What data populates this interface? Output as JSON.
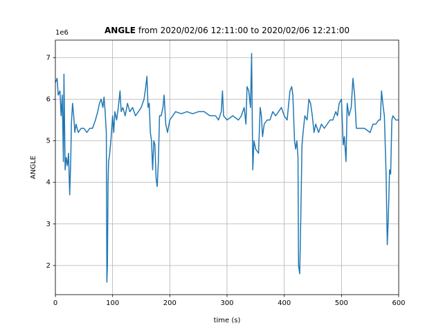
{
  "chart_data": {
    "type": "line",
    "title_bold": "ANGLE",
    "title": "from 2020/02/06 12:11:00 to 2020/02/06 12:21:00",
    "y_offset_label": "1e6",
    "xlabel": "time (s)",
    "ylabel": "ANGLE",
    "xlim": [
      0,
      600
    ],
    "xticks": [
      0,
      100,
      200,
      300,
      400,
      500,
      600
    ],
    "ylim": [
      1.3,
      7.42
    ],
    "yticks": [
      2,
      3,
      4,
      5,
      6,
      7
    ],
    "grid": true,
    "series": [
      {
        "name": "ANGLE",
        "color": "#1f77b4",
        "x": [
          0,
          3,
          5,
          8,
          10,
          12,
          14,
          15,
          17,
          19,
          21,
          23,
          25,
          27,
          28,
          30,
          32,
          34,
          36,
          40,
          45,
          50,
          55,
          60,
          65,
          70,
          74,
          77,
          80,
          83,
          85,
          87,
          89,
          90,
          91,
          92,
          93,
          95,
          97,
          100,
          102,
          104,
          107,
          110,
          113,
          115,
          118,
          122,
          126,
          130,
          135,
          140,
          145,
          150,
          155,
          158,
          160,
          162,
          164,
          166,
          168,
          170,
          172,
          174,
          176,
          178,
          180,
          182,
          185,
          188,
          190,
          193,
          196,
          200,
          205,
          210,
          220,
          230,
          240,
          250,
          260,
          270,
          280,
          285,
          290,
          292,
          294,
          300,
          310,
          320,
          325,
          330,
          333,
          335,
          338,
          341,
          343,
          345,
          347,
          350,
          355,
          358,
          360,
          362,
          365,
          370,
          375,
          380,
          385,
          390,
          395,
          400,
          405,
          410,
          413,
          415,
          418,
          420,
          422,
          424,
          425,
          427,
          429,
          431,
          433,
          436,
          440,
          443,
          446,
          449,
          452,
          455,
          460,
          465,
          470,
          475,
          480,
          485,
          490,
          493,
          496,
          500,
          503,
          505,
          508,
          510,
          513,
          517,
          520,
          523,
          526,
          530,
          540,
          550,
          555,
          560,
          565,
          568,
          570,
          573,
          575,
          578,
          580,
          582,
          584,
          586,
          588,
          590,
          595,
          600
        ],
        "values": [
          6.4,
          6.5,
          6.1,
          6.2,
          5.6,
          6.1,
          4.5,
          6.6,
          4.3,
          4.6,
          4.4,
          4.7,
          3.7,
          4.6,
          5.4,
          5.9,
          5.6,
          5.2,
          5.4,
          5.2,
          5.3,
          5.3,
          5.2,
          5.3,
          5.3,
          5.5,
          5.7,
          5.9,
          6.0,
          5.8,
          6.05,
          5.7,
          5.2,
          1.6,
          2.0,
          4.0,
          4.5,
          4.7,
          5.0,
          5.6,
          5.2,
          5.7,
          5.5,
          5.8,
          6.2,
          5.7,
          5.8,
          5.6,
          5.9,
          5.7,
          5.8,
          5.6,
          5.7,
          5.8,
          6.0,
          6.3,
          6.55,
          5.8,
          5.9,
          5.2,
          5.0,
          4.3,
          5.0,
          4.9,
          4.1,
          3.9,
          4.5,
          5.6,
          5.6,
          5.8,
          6.1,
          5.4,
          5.2,
          5.5,
          5.6,
          5.7,
          5.65,
          5.7,
          5.65,
          5.7,
          5.7,
          5.6,
          5.6,
          5.5,
          5.7,
          6.2,
          5.6,
          5.5,
          5.6,
          5.5,
          5.6,
          5.8,
          5.4,
          6.3,
          6.2,
          5.8,
          7.1,
          4.3,
          5.0,
          4.8,
          4.7,
          5.8,
          5.6,
          5.1,
          5.4,
          5.5,
          5.5,
          5.7,
          5.6,
          5.7,
          5.8,
          5.6,
          5.5,
          6.2,
          6.3,
          6.1,
          5.0,
          4.8,
          5.0,
          4.6,
          2.0,
          1.8,
          3.2,
          4.9,
          5.2,
          5.6,
          5.5,
          6.0,
          5.9,
          5.6,
          5.2,
          5.4,
          5.2,
          5.4,
          5.3,
          5.4,
          5.5,
          5.5,
          5.7,
          5.6,
          5.9,
          6.0,
          4.9,
          5.1,
          4.5,
          5.9,
          5.6,
          5.8,
          6.5,
          6.1,
          5.3,
          5.3,
          5.3,
          5.2,
          5.4,
          5.4,
          5.5,
          5.5,
          6.2,
          5.8,
          5.6,
          4.2,
          2.5,
          3.2,
          4.3,
          4.2,
          5.5,
          5.6,
          5.5,
          5.5
        ]
      }
    ]
  }
}
